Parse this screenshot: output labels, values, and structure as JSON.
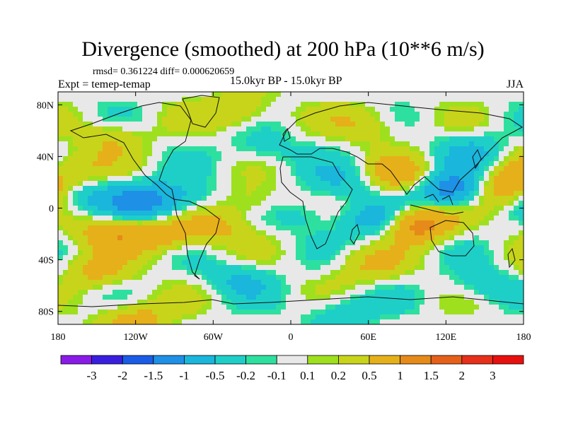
{
  "chart_data": {
    "type": "heatmap",
    "title": "Divergence (smoothed) at 200 hPa (10**6 m/s)",
    "stats": "rmsd= 0.361224 diff= 0.000620659",
    "experiment": "Expt = temep-temap",
    "period": "15.0kyr BP - 15.0kyr BP",
    "season": "JJA",
    "x_axis": {
      "range": [
        -180,
        180
      ],
      "ticks": [
        -180,
        -120,
        -60,
        0,
        60,
        120,
        180
      ],
      "tick_labels": [
        "180",
        "120W",
        "60W",
        "0",
        "60E",
        "120E",
        "180"
      ]
    },
    "y_axis": {
      "range": [
        -90,
        90
      ],
      "ticks": [
        80,
        40,
        0,
        -40,
        -80
      ],
      "tick_labels": [
        "80N",
        "40N",
        "0",
        "40S",
        "80S"
      ]
    },
    "colorbar": {
      "levels": [
        "-3",
        "-2",
        "-1.5",
        "-1",
        "-0.5",
        "-0.2",
        "-0.1",
        "0.1",
        "0.2",
        "0.5",
        "1",
        "1.5",
        "2",
        "3"
      ],
      "colors": [
        "#8a1ae8",
        "#3a1ee0",
        "#1a5ce6",
        "#1e90e6",
        "#1ab6dc",
        "#1ecfc8",
        "#2ee0a0",
        "#e8e8e8",
        "#9ee01e",
        "#c8d41a",
        "#e6b01a",
        "#e68a1a",
        "#e6601a",
        "#e6301a",
        "#e8100e"
      ]
    },
    "fields": [
      {
        "lon": -140,
        "lat": -18,
        "value": 0.8
      },
      {
        "lon": -100,
        "lat": -22,
        "value": 0.7
      },
      {
        "lon": -165,
        "lat": 10,
        "value": -0.6
      },
      {
        "lon": -115,
        "lat": 5,
        "value": -1.2
      },
      {
        "lon": -80,
        "lat": 8,
        "value": -0.5
      },
      {
        "lon": -60,
        "lat": -15,
        "value": 0.6
      },
      {
        "lon": -30,
        "lat": 5,
        "value": 0.5
      },
      {
        "lon": 10,
        "lat": -5,
        "value": -0.4
      },
      {
        "lon": 40,
        "lat": 20,
        "value": -0.5
      },
      {
        "lon": 70,
        "lat": -10,
        "value": -1.0
      },
      {
        "lon": 95,
        "lat": -12,
        "value": 1.6
      },
      {
        "lon": 125,
        "lat": 15,
        "value": -1.5
      },
      {
        "lon": 165,
        "lat": 15,
        "value": 1.1
      },
      {
        "lon": 85,
        "lat": 25,
        "value": 0.8
      },
      {
        "lon": -140,
        "lat": 55,
        "value": 0.5
      },
      {
        "lon": -40,
        "lat": 75,
        "value": 0.6
      },
      {
        "lon": 60,
        "lat": 65,
        "value": 0.5
      },
      {
        "lon": -150,
        "lat": -50,
        "value": 0.6
      },
      {
        "lon": -40,
        "lat": -55,
        "value": -0.5
      },
      {
        "lon": 60,
        "lat": -45,
        "value": 0.5
      },
      {
        "lon": 150,
        "lat": -60,
        "value": -0.5
      },
      {
        "lon": -120,
        "lat": -85,
        "value": 0.7
      },
      {
        "lon": 40,
        "lat": -80,
        "value": -0.5
      },
      {
        "lon": 140,
        "lat": 45,
        "value": -0.5
      },
      {
        "lon": -20,
        "lat": 45,
        "value": -0.4
      },
      {
        "lon": -170,
        "lat": 30,
        "value": 0.5
      }
    ]
  }
}
